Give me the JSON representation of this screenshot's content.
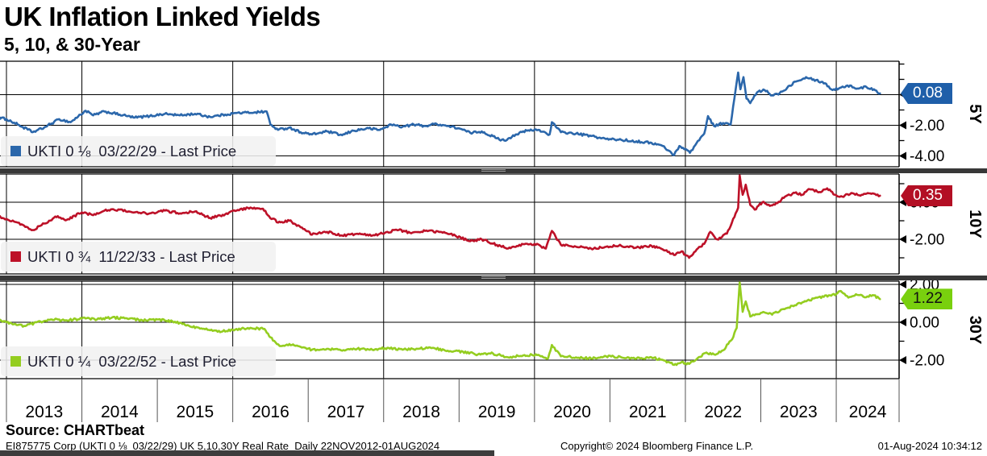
{
  "header": {
    "title": "UK Inflation Linked Yields",
    "subtitle": "5, 10, & 30-Year"
  },
  "source": {
    "label": "Source: CHARTbeat"
  },
  "footer": {
    "left": "EI875775 Corp (UKTI 0 ⅛  03/22/29) UK 5,10,30Y Real Rate  Daily 22NOV2012-01AUG2024",
    "center": "Copyright© 2024 Bloomberg Finance L.P.",
    "right": "01-Aug-2024 10:34:12"
  },
  "x_axis": {
    "year_labels": [
      "2013",
      "2014",
      "2015",
      "2016",
      "2017",
      "2018",
      "2019",
      "2020",
      "2021",
      "2022",
      "2023",
      "2024"
    ],
    "gridline_years": [
      2014,
      2016,
      2018,
      2020,
      2022,
      2024
    ],
    "range": [
      2012.9,
      2024.583
    ]
  },
  "chart_data": [
    {
      "type": "line",
      "name": "5Y",
      "legend": "UKTI 0 ⅛  03/22/29 - Last Price",
      "last_price": "0.08",
      "line_color": "#2b67ab",
      "tag_color": "#1f5fa9",
      "tag_text_color": "#ffffff",
      "ylim": [
        -4.7,
        2.2
      ],
      "y_major_ticks": [
        {
          "value": 0,
          "label": "0.00"
        },
        {
          "value": -2,
          "label": "-2.00"
        },
        {
          "value": -4,
          "label": "-4.00"
        }
      ],
      "points": [
        [
          2012.9,
          -1.5
        ],
        [
          2013.0,
          -1.6
        ],
        [
          2013.15,
          -1.95
        ],
        [
          2013.35,
          -2.45
        ],
        [
          2013.5,
          -2.15
        ],
        [
          2013.7,
          -1.6
        ],
        [
          2013.85,
          -1.8
        ],
        [
          2014.05,
          -1.05
        ],
        [
          2014.15,
          -1.35
        ],
        [
          2014.3,
          -1.1
        ],
        [
          2014.5,
          -1.3
        ],
        [
          2014.7,
          -1.5
        ],
        [
          2014.9,
          -1.4
        ],
        [
          2015.1,
          -1.25
        ],
        [
          2015.3,
          -1.35
        ],
        [
          2015.5,
          -1.25
        ],
        [
          2015.7,
          -1.45
        ],
        [
          2015.9,
          -1.3
        ],
        [
          2016.05,
          -1.2
        ],
        [
          2016.3,
          -1.15
        ],
        [
          2016.45,
          -1.1
        ],
        [
          2016.5,
          -1.95
        ],
        [
          2016.6,
          -2.3
        ],
        [
          2016.75,
          -2.15
        ],
        [
          2016.9,
          -2.45
        ],
        [
          2017.05,
          -2.6
        ],
        [
          2017.25,
          -2.4
        ],
        [
          2017.45,
          -2.65
        ],
        [
          2017.6,
          -2.35
        ],
        [
          2017.8,
          -2.2
        ],
        [
          2017.95,
          -2.3
        ],
        [
          2018.1,
          -1.95
        ],
        [
          2018.25,
          -2.1
        ],
        [
          2018.4,
          -1.95
        ],
        [
          2018.55,
          -2.05
        ],
        [
          2018.7,
          -1.9
        ],
        [
          2018.85,
          -2.05
        ],
        [
          2019.0,
          -2.2
        ],
        [
          2019.15,
          -2.5
        ],
        [
          2019.3,
          -2.4
        ],
        [
          2019.5,
          -2.85
        ],
        [
          2019.6,
          -3.0
        ],
        [
          2019.75,
          -2.6
        ],
        [
          2019.9,
          -2.35
        ],
        [
          2020.05,
          -2.3
        ],
        [
          2020.2,
          -2.6
        ],
        [
          2020.23,
          -1.8
        ],
        [
          2020.35,
          -2.45
        ],
        [
          2020.55,
          -2.55
        ],
        [
          2020.75,
          -2.7
        ],
        [
          2020.95,
          -2.9
        ],
        [
          2021.15,
          -2.95
        ],
        [
          2021.35,
          -3.05
        ],
        [
          2021.55,
          -3.15
        ],
        [
          2021.7,
          -3.35
        ],
        [
          2021.85,
          -3.95
        ],
        [
          2021.92,
          -3.35
        ],
        [
          2022.0,
          -3.55
        ],
        [
          2022.06,
          -3.8
        ],
        [
          2022.15,
          -3.15
        ],
        [
          2022.25,
          -2.55
        ],
        [
          2022.3,
          -1.4
        ],
        [
          2022.38,
          -2.05
        ],
        [
          2022.5,
          -1.85
        ],
        [
          2022.6,
          -1.95
        ],
        [
          2022.7,
          1.45
        ],
        [
          2022.73,
          0.35
        ],
        [
          2022.77,
          1.15
        ],
        [
          2022.81,
          -0.25
        ],
        [
          2022.86,
          -0.55
        ],
        [
          2022.95,
          0.15
        ],
        [
          2023.05,
          0.3
        ],
        [
          2023.15,
          -0.05
        ],
        [
          2023.25,
          0.1
        ],
        [
          2023.35,
          0.45
        ],
        [
          2023.45,
          0.85
        ],
        [
          2023.6,
          1.15
        ],
        [
          2023.7,
          1.0
        ],
        [
          2023.85,
          0.75
        ],
        [
          2023.95,
          0.3
        ],
        [
          2024.05,
          0.45
        ],
        [
          2024.15,
          0.6
        ],
        [
          2024.28,
          0.4
        ],
        [
          2024.4,
          0.5
        ],
        [
          2024.5,
          0.35
        ],
        [
          2024.58,
          0.08
        ]
      ]
    },
    {
      "type": "line",
      "name": "10Y",
      "legend": "UKTI 0 ¾  11/22/33 - Last Price",
      "last_price": "0.35",
      "line_color": "#bd1128",
      "tag_color": "#b30f24",
      "tag_text_color": "#ffffff",
      "ylim": [
        -3.9,
        1.5
      ],
      "y_major_ticks": [
        {
          "value": 0,
          "label": "0.00"
        },
        {
          "value": -2,
          "label": "-2.00"
        }
      ],
      "points": [
        [
          2012.9,
          -0.75
        ],
        [
          2013.0,
          -0.9
        ],
        [
          2013.15,
          -1.1
        ],
        [
          2013.35,
          -1.5
        ],
        [
          2013.5,
          -1.15
        ],
        [
          2013.68,
          -0.75
        ],
        [
          2013.8,
          -0.95
        ],
        [
          2014.0,
          -0.55
        ],
        [
          2014.15,
          -0.7
        ],
        [
          2014.3,
          -0.45
        ],
        [
          2014.5,
          -0.4
        ],
        [
          2014.7,
          -0.55
        ],
        [
          2014.9,
          -0.6
        ],
        [
          2015.1,
          -0.45
        ],
        [
          2015.3,
          -0.6
        ],
        [
          2015.5,
          -0.5
        ],
        [
          2015.7,
          -0.85
        ],
        [
          2015.9,
          -0.65
        ],
        [
          2016.05,
          -0.45
        ],
        [
          2016.2,
          -0.3
        ],
        [
          2016.4,
          -0.35
        ],
        [
          2016.48,
          -0.75
        ],
        [
          2016.6,
          -1.1
        ],
        [
          2016.75,
          -1.0
        ],
        [
          2016.9,
          -1.35
        ],
        [
          2017.05,
          -1.75
        ],
        [
          2017.25,
          -1.6
        ],
        [
          2017.45,
          -1.8
        ],
        [
          2017.65,
          -1.7
        ],
        [
          2017.85,
          -1.8
        ],
        [
          2018.05,
          -1.6
        ],
        [
          2018.2,
          -1.5
        ],
        [
          2018.35,
          -1.65
        ],
        [
          2018.55,
          -1.55
        ],
        [
          2018.75,
          -1.6
        ],
        [
          2018.95,
          -1.8
        ],
        [
          2019.15,
          -2.1
        ],
        [
          2019.3,
          -2.0
        ],
        [
          2019.5,
          -2.3
        ],
        [
          2019.65,
          -2.5
        ],
        [
          2019.8,
          -2.3
        ],
        [
          2020.0,
          -2.25
        ],
        [
          2020.15,
          -2.5
        ],
        [
          2020.23,
          -1.55
        ],
        [
          2020.35,
          -2.3
        ],
        [
          2020.55,
          -2.4
        ],
        [
          2020.75,
          -2.5
        ],
        [
          2020.95,
          -2.4
        ],
        [
          2021.15,
          -2.35
        ],
        [
          2021.35,
          -2.45
        ],
        [
          2021.55,
          -2.35
        ],
        [
          2021.7,
          -2.55
        ],
        [
          2021.85,
          -2.85
        ],
        [
          2021.95,
          -2.65
        ],
        [
          2022.05,
          -3.0
        ],
        [
          2022.15,
          -2.55
        ],
        [
          2022.25,
          -2.25
        ],
        [
          2022.33,
          -1.6
        ],
        [
          2022.42,
          -2.0
        ],
        [
          2022.55,
          -1.7
        ],
        [
          2022.65,
          -0.8
        ],
        [
          2022.7,
          -0.3
        ],
        [
          2022.72,
          1.45
        ],
        [
          2022.76,
          0.4
        ],
        [
          2022.8,
          0.95
        ],
        [
          2022.86,
          -0.15
        ],
        [
          2022.92,
          -0.4
        ],
        [
          2023.02,
          0.0
        ],
        [
          2023.12,
          -0.2
        ],
        [
          2023.22,
          -0.05
        ],
        [
          2023.32,
          0.3
        ],
        [
          2023.45,
          0.5
        ],
        [
          2023.55,
          0.4
        ],
        [
          2023.65,
          0.7
        ],
        [
          2023.78,
          0.55
        ],
        [
          2023.88,
          0.75
        ],
        [
          2023.98,
          0.4
        ],
        [
          2024.08,
          0.3
        ],
        [
          2024.2,
          0.5
        ],
        [
          2024.32,
          0.35
        ],
        [
          2024.45,
          0.48
        ],
        [
          2024.58,
          0.35
        ]
      ]
    },
    {
      "type": "line",
      "name": "30Y",
      "legend": "UKTI 0 ¼  03/22/52 - Last Price",
      "last_price": "1.22",
      "line_color": "#94cd20",
      "tag_color": "#79d00e",
      "tag_text_color": "#111111",
      "ylim": [
        -3.0,
        2.2
      ],
      "y_major_ticks": [
        {
          "value": 2,
          "label": "2.00"
        },
        {
          "value": 0,
          "label": "0.00"
        },
        {
          "value": -2,
          "label": "-2.00"
        }
      ],
      "points": [
        [
          2012.9,
          0.1
        ],
        [
          2013.0,
          0.0
        ],
        [
          2013.1,
          -0.1
        ],
        [
          2013.25,
          -0.2
        ],
        [
          2013.4,
          0.0
        ],
        [
          2013.6,
          0.15
        ],
        [
          2013.8,
          0.1
        ],
        [
          2014.0,
          0.2
        ],
        [
          2014.2,
          0.15
        ],
        [
          2014.4,
          0.25
        ],
        [
          2014.6,
          0.2
        ],
        [
          2014.8,
          0.1
        ],
        [
          2015.0,
          0.15
        ],
        [
          2015.2,
          0.05
        ],
        [
          2015.4,
          -0.15
        ],
        [
          2015.6,
          -0.35
        ],
        [
          2015.8,
          -0.5
        ],
        [
          2016.0,
          -0.4
        ],
        [
          2016.2,
          -0.3
        ],
        [
          2016.42,
          -0.35
        ],
        [
          2016.5,
          -0.8
        ],
        [
          2016.62,
          -1.25
        ],
        [
          2016.75,
          -1.15
        ],
        [
          2016.9,
          -1.3
        ],
        [
          2017.05,
          -1.45
        ],
        [
          2017.25,
          -1.4
        ],
        [
          2017.45,
          -1.5
        ],
        [
          2017.65,
          -1.4
        ],
        [
          2017.85,
          -1.45
        ],
        [
          2018.05,
          -1.35
        ],
        [
          2018.25,
          -1.45
        ],
        [
          2018.45,
          -1.4
        ],
        [
          2018.65,
          -1.35
        ],
        [
          2018.85,
          -1.5
        ],
        [
          2019.05,
          -1.55
        ],
        [
          2019.25,
          -1.7
        ],
        [
          2019.45,
          -1.65
        ],
        [
          2019.65,
          -1.85
        ],
        [
          2019.85,
          -1.75
        ],
        [
          2020.05,
          -1.72
        ],
        [
          2020.18,
          -1.9
        ],
        [
          2020.23,
          -1.2
        ],
        [
          2020.35,
          -1.8
        ],
        [
          2020.55,
          -1.85
        ],
        [
          2020.75,
          -1.92
        ],
        [
          2020.95,
          -1.8
        ],
        [
          2021.15,
          -1.85
        ],
        [
          2021.35,
          -1.92
        ],
        [
          2021.55,
          -1.85
        ],
        [
          2021.72,
          -2.02
        ],
        [
          2021.85,
          -2.25
        ],
        [
          2021.95,
          -2.1
        ],
        [
          2022.05,
          -2.2
        ],
        [
          2022.15,
          -1.95
        ],
        [
          2022.28,
          -1.6
        ],
        [
          2022.38,
          -1.7
        ],
        [
          2022.5,
          -1.48
        ],
        [
          2022.62,
          -0.9
        ],
        [
          2022.68,
          -0.3
        ],
        [
          2022.72,
          2.1
        ],
        [
          2022.76,
          0.55
        ],
        [
          2022.8,
          1.1
        ],
        [
          2022.86,
          0.3
        ],
        [
          2022.95,
          0.42
        ],
        [
          2023.05,
          0.52
        ],
        [
          2023.15,
          0.4
        ],
        [
          2023.3,
          0.7
        ],
        [
          2023.45,
          0.9
        ],
        [
          2023.6,
          1.1
        ],
        [
          2023.75,
          1.3
        ],
        [
          2023.9,
          1.42
        ],
        [
          2024.0,
          1.5
        ],
        [
          2024.06,
          1.65
        ],
        [
          2024.16,
          1.3
        ],
        [
          2024.26,
          1.48
        ],
        [
          2024.36,
          1.35
        ],
        [
          2024.5,
          1.42
        ],
        [
          2024.58,
          1.22
        ]
      ]
    }
  ]
}
